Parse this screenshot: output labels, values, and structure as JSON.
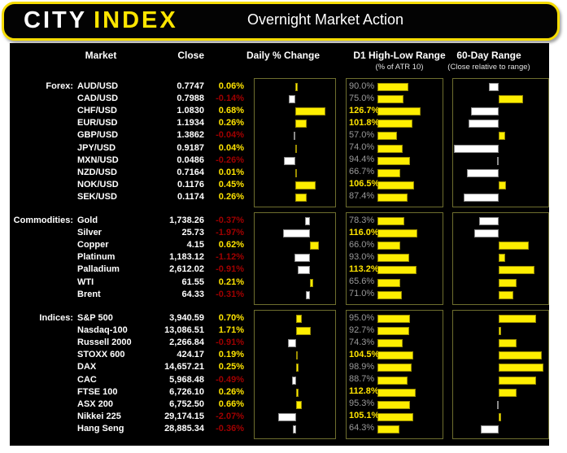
{
  "banner": {
    "logo_part1": "CITY",
    "logo_part2": "INDEX",
    "title": "Overnight Market Action"
  },
  "header": {
    "market": "Market",
    "close": "Close",
    "daily": "Daily % Change",
    "d1": "D1 High-Low Range",
    "d1_sub": "(% of ATR 10)",
    "range60": "60-Day Range",
    "range60_sub": "(Close relative to range)"
  },
  "colors": {
    "accent_yellow": "#ffe400",
    "bar_yellow": "#feee00",
    "bar_white": "#ffffff",
    "negative_red": "#a00000",
    "gray_label": "#9a9a9a",
    "panel_border": "#6e6e2e",
    "background": "#000000"
  },
  "chart_data": {
    "type": "table",
    "title": "Overnight Market Action",
    "columns": [
      "Market",
      "Close",
      "Daily % Change",
      "D1 High-Low Range (% of ATR 10)",
      "60-Day Range (Close relative to range)"
    ],
    "notes": "daily_pct in percent (bar right=yellow positive, left=white negative); d1_range_pct = day range as % of 10-day ATR (yellow bar, label yellow-bold when >=100); range60_pct = close position within 60-day range, 0-100, 50=center (above 50 yellow bar right of center, below 50 white bar left of center)",
    "sections": [
      {
        "label": "Forex:",
        "rows": [
          {
            "market": "AUD/USD",
            "close": "0.7747",
            "daily_pct": 0.06,
            "daily_str": "0.06%",
            "d1_range_pct": 90.0,
            "d1_str": "90.0%",
            "range60_pct": 39
          },
          {
            "market": "CAD/USD",
            "close": "0.7988",
            "daily_pct": -0.14,
            "daily_str": "-0.14%",
            "d1_range_pct": 75.0,
            "d1_str": "75.0%",
            "range60_pct": 77
          },
          {
            "market": "CHF/USD",
            "close": "1.0830",
            "daily_pct": 0.68,
            "daily_str": "0.68%",
            "d1_range_pct": 126.7,
            "d1_str": "126.7%",
            "range60_pct": 20
          },
          {
            "market": "EUR/USD",
            "close": "1.1934",
            "daily_pct": 0.26,
            "daily_str": "0.26%",
            "d1_range_pct": 101.8,
            "d1_str": "101.8%",
            "range60_pct": 17
          },
          {
            "market": "GBP/USD",
            "close": "1.3862",
            "daily_pct": -0.04,
            "daily_str": "-0.04%",
            "d1_range_pct": 57.0,
            "d1_str": "57.0%",
            "range60_pct": 57
          },
          {
            "market": "JPY/USD",
            "close": "0.9187",
            "daily_pct": 0.04,
            "daily_str": "0.04%",
            "d1_range_pct": 74.0,
            "d1_str": "74.0%",
            "range60_pct": 1
          },
          {
            "market": "MXN/USD",
            "close": "0.0486",
            "daily_pct": -0.26,
            "daily_str": "-0.26%",
            "d1_range_pct": 94.4,
            "d1_str": "94.4%",
            "range60_pct": 48
          },
          {
            "market": "NZD/USD",
            "close": "0.7164",
            "daily_pct": 0.01,
            "daily_str": "0.01%",
            "d1_range_pct": 66.7,
            "d1_str": "66.7%",
            "range60_pct": 15
          },
          {
            "market": "NOK/USD",
            "close": "0.1176",
            "daily_pct": 0.45,
            "daily_str": "0.45%",
            "d1_range_pct": 106.5,
            "d1_str": "106.5%",
            "range60_pct": 58
          },
          {
            "market": "SEK/USD",
            "close": "0.1174",
            "daily_pct": 0.26,
            "daily_str": "0.26%",
            "d1_range_pct": 87.4,
            "d1_str": "87.4%",
            "range60_pct": 12
          }
        ]
      },
      {
        "label": "Commodities:",
        "rows": [
          {
            "market": "Gold",
            "close": "1,738.26",
            "daily_pct": -0.37,
            "daily_str": "-0.37%",
            "d1_range_pct": 78.3,
            "d1_str": "78.3%",
            "range60_pct": 29
          },
          {
            "market": "Silver",
            "close": "25.73",
            "daily_pct": -1.97,
            "daily_str": "-1.97%",
            "d1_range_pct": 116.0,
            "d1_str": "116.0%",
            "range60_pct": 23
          },
          {
            "market": "Copper",
            "close": "4.15",
            "daily_pct": 0.62,
            "daily_str": "0.62%",
            "d1_range_pct": 66.0,
            "d1_str": "66.0%",
            "range60_pct": 83
          },
          {
            "market": "Platinum",
            "close": "1,183.12",
            "daily_pct": -1.12,
            "daily_str": "-1.12%",
            "d1_range_pct": 93.0,
            "d1_str": "93.0%",
            "range60_pct": 57
          },
          {
            "market": "Palladium",
            "close": "2,612.02",
            "daily_pct": -0.91,
            "daily_str": "-0.91%",
            "d1_range_pct": 113.2,
            "d1_str": "113.2%",
            "range60_pct": 89
          },
          {
            "market": "WTI",
            "close": "61.55",
            "daily_pct": 0.21,
            "daily_str": "0.21%",
            "d1_range_pct": 65.6,
            "d1_str": "65.6%",
            "range60_pct": 70
          },
          {
            "market": "Brent",
            "close": "64.33",
            "daily_pct": -0.31,
            "daily_str": "-0.31%",
            "d1_range_pct": 71.0,
            "d1_str": "71.0%",
            "range60_pct": 66
          }
        ]
      },
      {
        "label": "Indices:",
        "rows": [
          {
            "market": "S&P 500",
            "close": "3,940.59",
            "daily_pct": 0.7,
            "daily_str": "0.70%",
            "d1_range_pct": 95.0,
            "d1_str": "95.0%",
            "range60_pct": 91
          },
          {
            "market": "Nasdaq-100",
            "close": "13,086.51",
            "daily_pct": 1.71,
            "daily_str": "1.71%",
            "d1_range_pct": 92.7,
            "d1_str": "92.7%",
            "range60_pct": 53
          },
          {
            "market": "Russell 2000",
            "close": "2,266.84",
            "daily_pct": -0.91,
            "daily_str": "-0.91%",
            "d1_range_pct": 74.3,
            "d1_str": "74.3%",
            "range60_pct": 70
          },
          {
            "market": "STOXX 600",
            "close": "424.17",
            "daily_pct": 0.19,
            "daily_str": "0.19%",
            "d1_range_pct": 104.5,
            "d1_str": "104.5%",
            "range60_pct": 97
          },
          {
            "market": "DAX",
            "close": "14,657.21",
            "daily_pct": 0.25,
            "daily_str": "0.25%",
            "d1_range_pct": 98.9,
            "d1_str": "98.9%",
            "range60_pct": 99
          },
          {
            "market": "CAC",
            "close": "5,968.48",
            "daily_pct": -0.49,
            "daily_str": "-0.49%",
            "d1_range_pct": 88.7,
            "d1_str": "88.7%",
            "range60_pct": 91
          },
          {
            "market": "FTSE 100",
            "close": "6,726.10",
            "daily_pct": 0.26,
            "daily_str": "0.26%",
            "d1_range_pct": 112.8,
            "d1_str": "112.8%",
            "range60_pct": 70
          },
          {
            "market": "ASX 200",
            "close": "6,752.50",
            "daily_pct": 0.66,
            "daily_str": "0.66%",
            "d1_range_pct": 95.3,
            "d1_str": "95.3%",
            "range60_pct": 48
          },
          {
            "market": "Nikkei 225",
            "close": "29,174.15",
            "daily_pct": -2.07,
            "daily_str": "-2.07%",
            "d1_range_pct": 105.1,
            "d1_str": "105.1%",
            "range60_pct": 53
          },
          {
            "market": "Hang Seng",
            "close": "28,885.34",
            "daily_pct": -0.36,
            "daily_str": "-0.36%",
            "d1_range_pct": 64.3,
            "d1_str": "64.3%",
            "range60_pct": 30
          }
        ]
      }
    ]
  }
}
